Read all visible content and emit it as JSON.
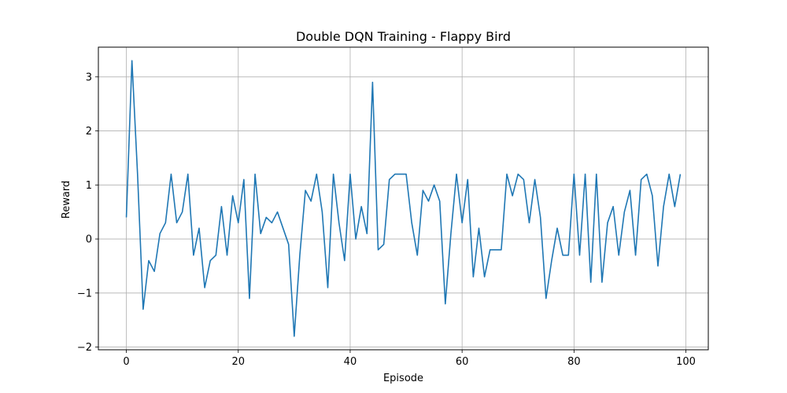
{
  "chart_data": {
    "type": "line",
    "title": "Double DQN Training - Flappy Bird",
    "xlabel": "Episode",
    "ylabel": "Reward",
    "xlim": [
      -5,
      104
    ],
    "ylim": [
      -2.05,
      3.55
    ],
    "xticks": [
      0,
      20,
      40,
      60,
      80,
      100
    ],
    "yticks": [
      -2,
      -1,
      0,
      1,
      2,
      3
    ],
    "xtick_labels": [
      "0",
      "20",
      "40",
      "60",
      "80",
      "100"
    ],
    "ytick_labels": [
      "−2",
      "−1",
      "0",
      "1",
      "2",
      "3"
    ],
    "grid": true,
    "line_color": "#1f77b4",
    "x": [
      0,
      1,
      2,
      3,
      4,
      5,
      6,
      7,
      8,
      9,
      10,
      11,
      12,
      13,
      14,
      15,
      16,
      17,
      18,
      19,
      20,
      21,
      22,
      23,
      24,
      25,
      26,
      27,
      28,
      29,
      30,
      31,
      32,
      33,
      34,
      35,
      36,
      37,
      38,
      39,
      40,
      41,
      42,
      43,
      44,
      45,
      46,
      47,
      48,
      49,
      50,
      51,
      52,
      53,
      54,
      55,
      56,
      57,
      58,
      59,
      60,
      61,
      62,
      63,
      64,
      65,
      66,
      67,
      68,
      69,
      70,
      71,
      72,
      73,
      74,
      75,
      76,
      77,
      78,
      79,
      80,
      81,
      82,
      83,
      84,
      85,
      86,
      87,
      88,
      89,
      90,
      91,
      92,
      93,
      94,
      95,
      96,
      97,
      98,
      99
    ],
    "y": [
      0.4,
      3.3,
      1.2,
      -1.3,
      -0.4,
      -0.6,
      0.1,
      0.3,
      1.2,
      0.3,
      0.5,
      1.2,
      -0.3,
      0.2,
      -0.9,
      -0.4,
      -0.3,
      0.6,
      -0.3,
      0.8,
      0.3,
      1.1,
      -1.1,
      1.2,
      0.1,
      0.4,
      0.3,
      0.5,
      0.2,
      -0.1,
      -1.8,
      -0.3,
      0.9,
      0.7,
      1.2,
      0.5,
      -0.9,
      1.2,
      0.3,
      -0.4,
      1.2,
      0.0,
      0.6,
      0.1,
      2.9,
      -0.2,
      -0.1,
      1.1,
      1.2,
      1.2,
      1.2,
      0.3,
      -0.3,
      0.9,
      0.7,
      1.0,
      0.7,
      -1.2,
      0.1,
      1.2,
      0.3,
      1.1,
      -0.7,
      0.2,
      -0.7,
      -0.2,
      -0.2,
      -0.2,
      1.2,
      0.8,
      1.2,
      1.1,
      0.3,
      1.1,
      0.4,
      -1.1,
      -0.4,
      0.2,
      -0.3,
      -0.3,
      1.2,
      -0.3,
      1.2,
      -0.8,
      1.2,
      -0.8,
      0.3,
      0.6,
      -0.3,
      0.5,
      0.9,
      -0.3,
      1.1,
      1.2,
      0.8,
      -0.5,
      0.6,
      1.2,
      0.6,
      1.2
    ]
  }
}
